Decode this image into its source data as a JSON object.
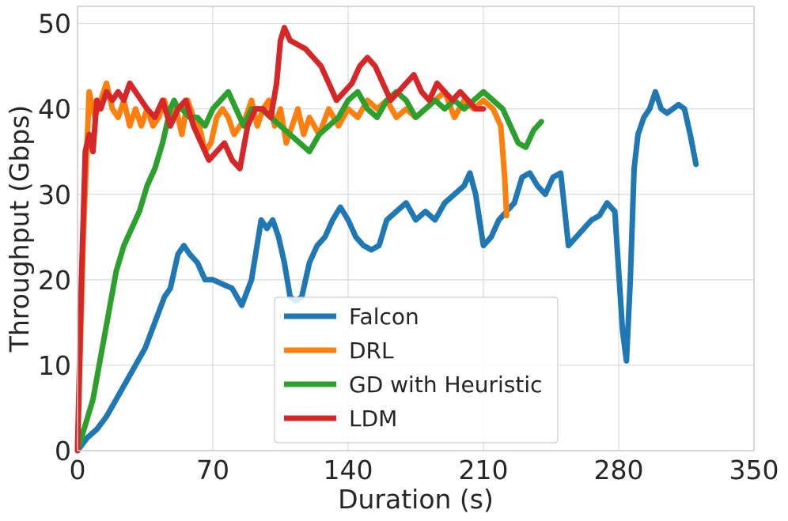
{
  "chart_data": {
    "type": "line",
    "title": "",
    "xlabel": "Duration (s)",
    "ylabel": "Throughput (Gbps)",
    "xlim": [
      0,
      350
    ],
    "ylim": [
      0,
      52
    ],
    "xticks": [
      0,
      70,
      140,
      210,
      280,
      350
    ],
    "yticks": [
      0,
      10,
      20,
      30,
      40,
      50
    ],
    "grid": true,
    "legend_position": "lower-center",
    "series": [
      {
        "name": "Falcon",
        "color": "#1f77b4",
        "x": [
          0,
          5,
          10,
          15,
          20,
          25,
          30,
          35,
          40,
          45,
          48,
          52,
          55,
          58,
          62,
          66,
          70,
          75,
          80,
          85,
          90,
          95,
          98,
          101,
          104,
          107,
          110,
          113,
          116,
          120,
          124,
          128,
          132,
          136,
          140,
          144,
          148,
          152,
          156,
          160,
          165,
          170,
          175,
          180,
          185,
          190,
          195,
          200,
          203,
          206,
          210,
          214,
          218,
          222,
          226,
          230,
          234,
          238,
          242,
          246,
          250,
          254,
          258,
          262,
          266,
          270,
          274,
          278,
          282,
          284,
          286,
          288,
          290,
          293,
          296,
          299,
          302,
          305,
          308,
          311,
          314,
          317,
          320
        ],
        "values": [
          0,
          1.5,
          2.5,
          4,
          6,
          8,
          10,
          12,
          15,
          18,
          19,
          23,
          24,
          23,
          22,
          20,
          20,
          19.5,
          19,
          17,
          20,
          27,
          26,
          27,
          25,
          22,
          18,
          17.5,
          18,
          22,
          24,
          25,
          27,
          28.5,
          27,
          25,
          24,
          23.5,
          24,
          27,
          28,
          29,
          27,
          28,
          27,
          29,
          30,
          31,
          32.5,
          30,
          24,
          25,
          27,
          28,
          29,
          32,
          32.5,
          31,
          30,
          32,
          32.5,
          24,
          25,
          26,
          27,
          27.5,
          29,
          28,
          14,
          10.5,
          20,
          33,
          37,
          39,
          40,
          42,
          40,
          39.5,
          40,
          40.5,
          40,
          37,
          33.5
        ]
      },
      {
        "name": "DRL",
        "color": "#ff7f0e",
        "x": [
          0,
          3,
          6,
          9,
          12,
          15,
          18,
          21,
          24,
          27,
          30,
          33,
          36,
          39,
          42,
          45,
          48,
          51,
          54,
          57,
          60,
          63,
          66,
          69,
          72,
          75,
          78,
          81,
          84,
          87,
          90,
          93,
          96,
          99,
          102,
          105,
          108,
          111,
          114,
          117,
          120,
          125,
          130,
          135,
          140,
          145,
          150,
          155,
          160,
          165,
          170,
          175,
          180,
          185,
          190,
          195,
          200,
          205,
          210,
          215,
          219,
          221,
          222
        ],
        "values": [
          0,
          25,
          42,
          39,
          41,
          43,
          40,
          39,
          41,
          38,
          40,
          38,
          40,
          38,
          39,
          41,
          38,
          40,
          37,
          41,
          39,
          38,
          35,
          36,
          39,
          40,
          39,
          37,
          38,
          39,
          41,
          38,
          40,
          41,
          38,
          40,
          36,
          38,
          40,
          37,
          39,
          37,
          40,
          38,
          40,
          39,
          41,
          40,
          41,
          39,
          40,
          39,
          40,
          41,
          42,
          39,
          41,
          40,
          41,
          40,
          38,
          32,
          27.5
        ]
      },
      {
        "name": "GD with Heuristic",
        "color": "#2ca02c",
        "x": [
          0,
          4,
          8,
          12,
          16,
          20,
          24,
          28,
          32,
          36,
          40,
          44,
          48,
          50,
          52,
          54,
          58,
          62,
          66,
          70,
          74,
          78,
          82,
          86,
          90,
          95,
          100,
          105,
          110,
          115,
          120,
          125,
          130,
          135,
          140,
          145,
          150,
          155,
          160,
          165,
          170,
          175,
          180,
          185,
          190,
          195,
          200,
          205,
          210,
          215,
          220,
          224,
          228,
          232,
          236,
          240
        ],
        "values": [
          0,
          3,
          6,
          11,
          16,
          21,
          24,
          26,
          28,
          31,
          33,
          36,
          40,
          41,
          40,
          40,
          39,
          39,
          38,
          40,
          41,
          42,
          40,
          38,
          40,
          40,
          39,
          38,
          37,
          36,
          35,
          37,
          38,
          39,
          41,
          42,
          40,
          39,
          41,
          42,
          41,
          39,
          40,
          41,
          40,
          41,
          40,
          41,
          42,
          41,
          40,
          38,
          36,
          35.5,
          37.5,
          38.5
        ]
      },
      {
        "name": "LDM",
        "color": "#d62728",
        "x": [
          0,
          2,
          4,
          6,
          8,
          10,
          12,
          15,
          18,
          21,
          24,
          27,
          30,
          33,
          36,
          40,
          44,
          48,
          52,
          56,
          60,
          64,
          68,
          72,
          76,
          80,
          84,
          88,
          92,
          96,
          100,
          103,
          105,
          107,
          110,
          114,
          118,
          122,
          126,
          130,
          134,
          138,
          142,
          146,
          150,
          154,
          158,
          162,
          166,
          170,
          174,
          178,
          182,
          186,
          190,
          194,
          198,
          202,
          206,
          210
        ],
        "values": [
          0,
          20,
          35,
          37,
          35,
          41,
          40,
          42,
          41,
          42,
          41,
          43,
          42,
          41,
          40,
          39,
          41,
          38,
          40,
          41,
          38,
          36,
          34,
          35,
          36,
          34,
          33,
          38,
          40,
          40,
          39,
          43,
          48,
          49.5,
          48,
          47.5,
          47,
          46,
          45,
          43,
          41,
          42,
          43,
          45,
          46,
          45,
          43,
          41,
          42,
          43,
          44,
          42,
          41,
          43,
          42,
          41,
          42,
          41,
          40,
          40
        ]
      }
    ]
  }
}
